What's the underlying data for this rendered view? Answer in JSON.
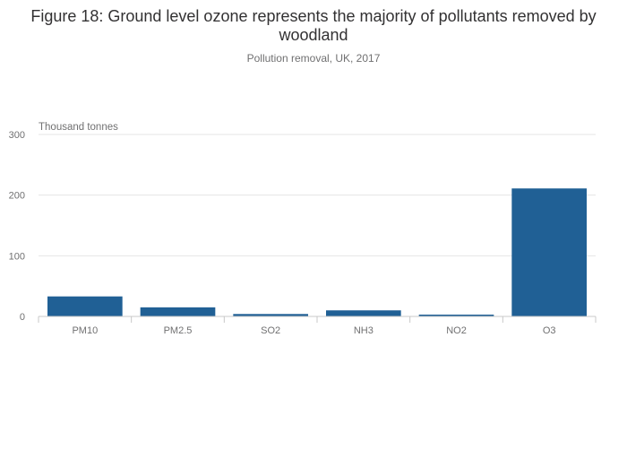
{
  "title": "Figure 18: Ground level ozone represents the majority of pollutants removed by woodland",
  "subtitle": "Pollution removal, UK, 2017",
  "chart_data": {
    "type": "bar",
    "title": "Figure 18: Ground level ozone represents the majority of pollutants removed by woodland",
    "subtitle": "Pollution removal, UK, 2017",
    "xlabel": "",
    "ylabel": "Thousand tonnes",
    "categories": [
      "PM10",
      "PM2.5",
      "SO2",
      "NH3",
      "NO2",
      "O3"
    ],
    "values": [
      33,
      15,
      4,
      10,
      3,
      211
    ],
    "ylim": [
      0,
      300
    ],
    "yticks": [
      0,
      100,
      200,
      300
    ],
    "grid": true,
    "legend": "none",
    "color": "#206095"
  }
}
